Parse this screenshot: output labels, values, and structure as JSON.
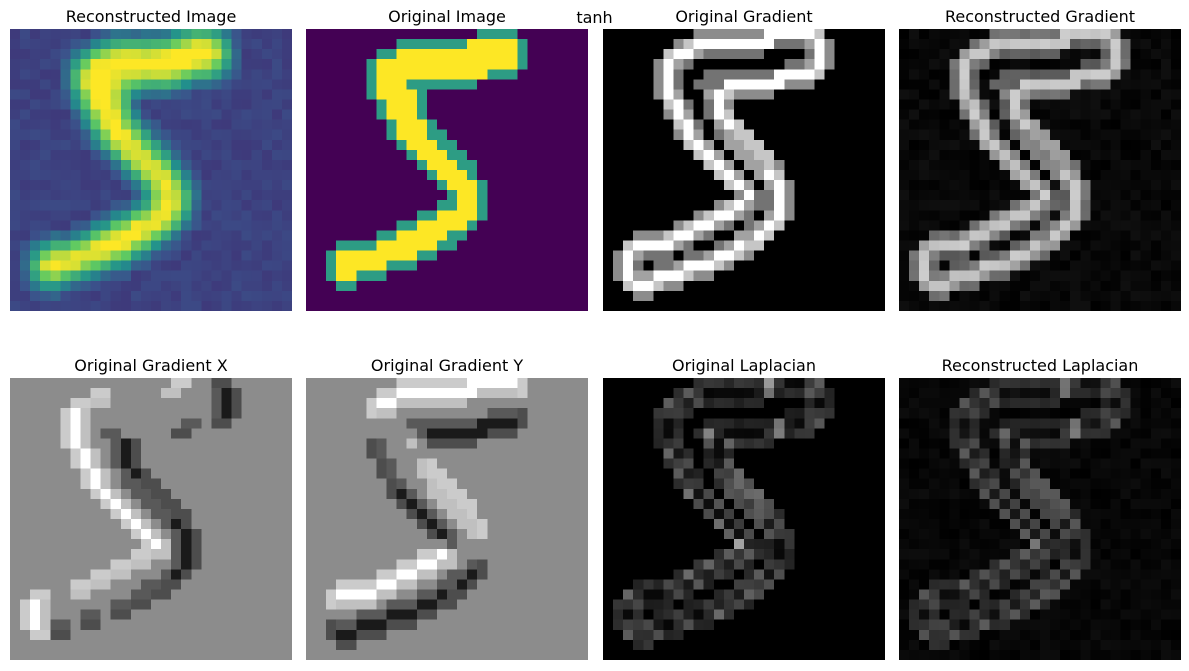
{
  "figure": {
    "suptitle": "tanh"
  },
  "panels": [
    {
      "id": "reconstructed-image",
      "title": "Reconstructed Image",
      "colormap": "viridis",
      "kind": "recon"
    },
    {
      "id": "original-image",
      "title": "Original Image",
      "colormap": "viridis",
      "kind": "orig"
    },
    {
      "id": "original-gradient",
      "title": "Original Gradient",
      "colormap": "gray",
      "kind": "grad"
    },
    {
      "id": "reconstructed-gradient",
      "title": "Reconstructed Gradient",
      "colormap": "gray",
      "kind": "rgrad"
    },
    {
      "id": "original-gradient-x",
      "title": "Original Gradient X",
      "colormap": "gray",
      "kind": "gx"
    },
    {
      "id": "original-gradient-y",
      "title": "Original Gradient Y",
      "colormap": "gray",
      "kind": "gy"
    },
    {
      "id": "original-laplacian",
      "title": "Original Laplacian",
      "colormap": "gray",
      "kind": "lap"
    },
    {
      "id": "reconstructed-laplacian",
      "title": "Reconstructed Laplacian",
      "colormap": "gray",
      "kind": "rlap"
    }
  ],
  "colors": {
    "viridis_low": "#440154",
    "viridis_high": "#fde725",
    "gray_low": "#000000",
    "gray_high": "#ffffff"
  }
}
